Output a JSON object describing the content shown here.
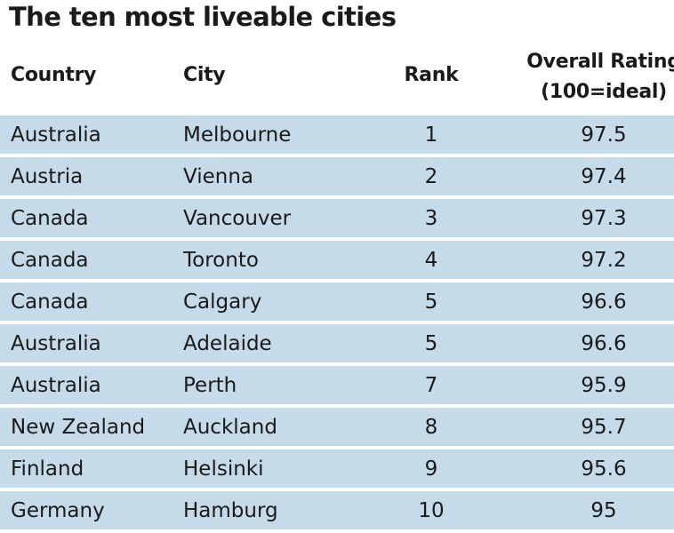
{
  "chart_data": {
    "type": "table",
    "title": "The ten most liveable cities",
    "columns": {
      "country": "Country",
      "city": "City",
      "rank": "Rank",
      "rating_line1": "Overall Rating",
      "rating_line2": "(100=ideal)"
    },
    "rows": [
      {
        "country": "Australia",
        "city": "Melbourne",
        "rank": "1",
        "rating": "97.5"
      },
      {
        "country": "Austria",
        "city": "Vienna",
        "rank": "2",
        "rating": "97.4"
      },
      {
        "country": "Canada",
        "city": "Vancouver",
        "rank": "3",
        "rating": "97.3"
      },
      {
        "country": "Canada",
        "city": "Toronto",
        "rank": "4",
        "rating": "97.2"
      },
      {
        "country": "Canada",
        "city": "Calgary",
        "rank": "5",
        "rating": "96.6"
      },
      {
        "country": "Australia",
        "city": "Adelaide",
        "rank": "5",
        "rating": "96.6"
      },
      {
        "country": "Australia",
        "city": "Perth",
        "rank": "7",
        "rating": "95.9"
      },
      {
        "country": "New Zealand",
        "city": "Auckland",
        "rank": "8",
        "rating": "95.7"
      },
      {
        "country": "Finland",
        "city": "Helsinki",
        "rank": "9",
        "rating": "95.6"
      },
      {
        "country": "Germany",
        "city": "Hamburg",
        "rank": "10",
        "rating": "95"
      }
    ],
    "row_color": "#c6dbe9"
  }
}
